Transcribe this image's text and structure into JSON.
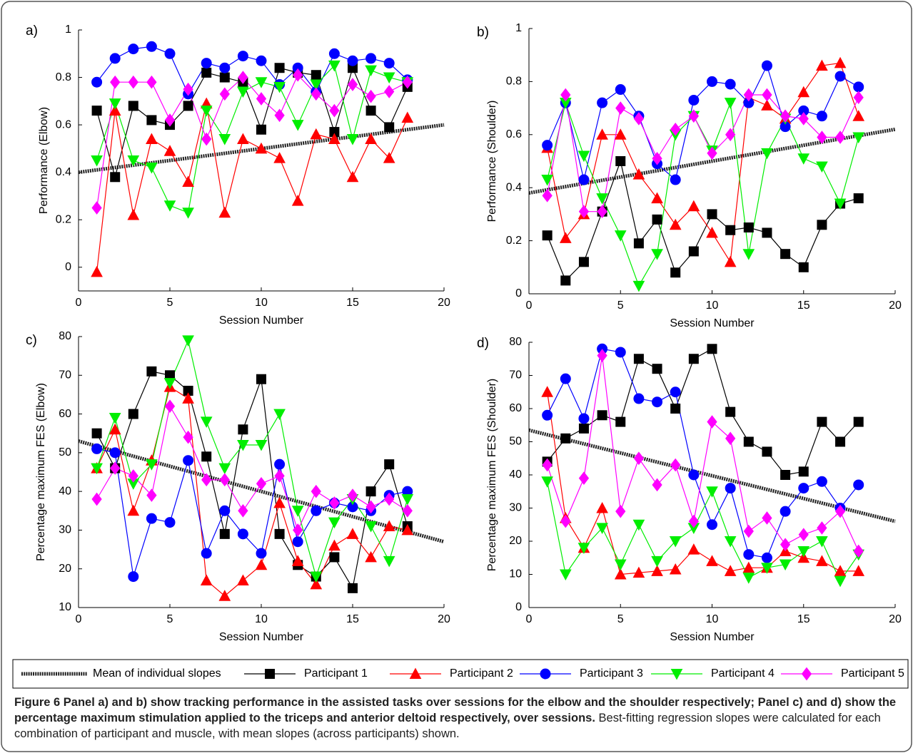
{
  "chart_data": [
    {
      "type": "line",
      "label": "a)",
      "ylabel": "Performance (Elbow)",
      "xlabel": "Session Number",
      "xlim": [
        0,
        20
      ],
      "ylim": [
        -0.1,
        1
      ],
      "xticks": [
        0,
        5,
        10,
        15,
        20
      ],
      "yticks": [
        0,
        0.2,
        0.4,
        0.6,
        0.8,
        1
      ],
      "x": [
        1,
        2,
        3,
        4,
        5,
        6,
        7,
        8,
        9,
        10,
        11,
        12,
        13,
        14,
        15,
        16,
        17,
        18
      ],
      "series": [
        {
          "values": [
            0.66,
            0.38,
            0.68,
            0.62,
            0.6,
            0.68,
            0.82,
            0.8,
            0.78,
            0.58,
            0.84,
            0.82,
            0.81,
            0.57,
            0.84,
            0.66,
            0.59,
            0.76
          ]
        },
        {
          "values": [
            -0.02,
            0.66,
            0.22,
            0.54,
            0.49,
            0.36,
            0.69,
            0.23,
            0.54,
            0.5,
            0.46,
            0.28,
            0.56,
            0.54,
            0.38,
            0.54,
            0.46,
            0.63
          ]
        },
        {
          "values": [
            0.78,
            0.88,
            0.92,
            0.93,
            0.9,
            0.73,
            0.86,
            0.84,
            0.89,
            0.87,
            0.77,
            0.84,
            0.74,
            0.9,
            0.87,
            0.88,
            0.86,
            0.79
          ]
        },
        {
          "values": [
            0.45,
            0.69,
            0.45,
            0.42,
            0.26,
            0.23,
            0.66,
            0.54,
            0.74,
            0.78,
            0.76,
            0.6,
            0.77,
            0.85,
            0.54,
            0.83,
            0.8,
            0.78
          ]
        },
        {
          "values": [
            0.25,
            0.78,
            0.78,
            0.78,
            0.62,
            0.75,
            0.54,
            0.73,
            0.8,
            0.71,
            0.64,
            0.81,
            0.73,
            0.66,
            0.77,
            0.72,
            0.74,
            0.78
          ]
        }
      ],
      "trend": {
        "x": [
          0,
          20
        ],
        "values": [
          0.4,
          0.6
        ]
      }
    },
    {
      "type": "line",
      "label": "b)",
      "ylabel": "Performance (Shoulder)",
      "xlabel": "Session Number",
      "xlim": [
        0,
        20
      ],
      "ylim": [
        0,
        1
      ],
      "xticks": [
        0,
        5,
        10,
        15,
        20
      ],
      "yticks": [
        0,
        0.2,
        0.4,
        0.6,
        0.8,
        1
      ],
      "x": [
        1,
        2,
        3,
        4,
        5,
        6,
        7,
        8,
        9,
        10,
        11,
        12,
        13,
        14,
        15,
        16,
        17,
        18
      ],
      "series": [
        {
          "values": [
            0.22,
            0.05,
            0.12,
            0.31,
            0.5,
            0.19,
            0.28,
            0.08,
            0.16,
            0.3,
            0.24,
            0.25,
            0.23,
            0.15,
            0.1,
            0.26,
            0.34,
            0.36
          ]
        },
        {
          "values": [
            0.55,
            0.21,
            0.3,
            0.6,
            0.6,
            0.45,
            0.36,
            0.26,
            0.33,
            0.23,
            0.12,
            0.74,
            0.71,
            0.66,
            0.76,
            0.86,
            0.87,
            0.67
          ]
        },
        {
          "values": [
            0.56,
            0.72,
            0.43,
            0.72,
            0.77,
            0.67,
            0.49,
            0.43,
            0.73,
            0.8,
            0.79,
            0.72,
            0.86,
            0.63,
            0.69,
            0.67,
            0.82,
            0.78
          ]
        },
        {
          "values": [
            0.43,
            0.72,
            0.52,
            0.36,
            0.22,
            0.03,
            0.15,
            0.6,
            0.67,
            0.54,
            0.72,
            0.15,
            0.53,
            0.66,
            0.51,
            0.48,
            0.34,
            0.59
          ]
        },
        {
          "values": [
            0.37,
            0.75,
            0.31,
            0.31,
            0.7,
            0.66,
            0.51,
            0.62,
            0.67,
            0.53,
            0.6,
            0.75,
            0.75,
            0.67,
            0.66,
            0.59,
            0.59,
            0.74
          ]
        }
      ],
      "trend": {
        "x": [
          0,
          20
        ],
        "values": [
          0.38,
          0.62
        ]
      }
    },
    {
      "type": "line",
      "label": "c)",
      "ylabel": "Percentage maximum FES (Elbow)",
      "xlabel": "Session Number",
      "xlim": [
        0,
        20
      ],
      "ylim": [
        10,
        80
      ],
      "xticks": [
        0,
        5,
        10,
        15,
        20
      ],
      "yticks": [
        10,
        20,
        30,
        40,
        50,
        60,
        70,
        80
      ],
      "x": [
        1,
        2,
        3,
        4,
        5,
        6,
        7,
        8,
        9,
        10,
        11,
        12,
        13,
        14,
        15,
        16,
        17,
        18
      ],
      "series": [
        {
          "values": [
            55,
            46,
            60,
            71,
            70,
            66,
            49,
            29,
            56,
            69,
            29,
            21,
            18,
            23,
            15,
            40,
            47,
            31
          ]
        },
        {
          "values": [
            46,
            56,
            35,
            48,
            67,
            64,
            17,
            13,
            17,
            21,
            37,
            22,
            16,
            26,
            29,
            23,
            31,
            30
          ]
        },
        {
          "values": [
            51,
            50,
            18,
            33,
            32,
            48,
            24,
            35,
            29,
            24,
            47,
            27,
            35,
            37,
            36,
            35,
            39,
            40
          ]
        },
        {
          "values": [
            46,
            59,
            42,
            47,
            68,
            79,
            58,
            46,
            52,
            52,
            60,
            35,
            18,
            32,
            38,
            31,
            22,
            38
          ]
        },
        {
          "values": [
            38,
            46,
            44,
            39,
            62,
            54,
            43,
            43,
            35,
            42,
            44,
            30,
            40,
            37,
            39,
            36,
            38,
            35
          ]
        }
      ],
      "trend": {
        "x": [
          0,
          20
        ],
        "values": [
          53,
          27
        ]
      }
    },
    {
      "type": "line",
      "label": "d)",
      "ylabel": "Percentage maximum FES (Shoulder)",
      "xlabel": "Session Number",
      "xlim": [
        0,
        20
      ],
      "ylim": [
        0,
        80
      ],
      "xticks": [
        0,
        5,
        10,
        15,
        20
      ],
      "yticks": [
        0,
        10,
        20,
        30,
        40,
        50,
        60,
        70,
        80
      ],
      "x": [
        1,
        2,
        3,
        4,
        5,
        6,
        7,
        8,
        9,
        10,
        11,
        12,
        13,
        14,
        15,
        16,
        17,
        18
      ],
      "series": [
        {
          "values": [
            44,
            51,
            54,
            58,
            56,
            75,
            72,
            60,
            75,
            78,
            59,
            50,
            47,
            40,
            41,
            56,
            50,
            56
          ]
        },
        {
          "values": [
            65,
            27,
            18,
            30,
            10,
            10.5,
            11,
            11.5,
            17.5,
            14,
            11,
            12,
            12,
            17,
            15,
            14,
            11,
            11
          ]
        },
        {
          "values": [
            58,
            69,
            57,
            78,
            77,
            63,
            62,
            65,
            40,
            25,
            36,
            16,
            15,
            29,
            36,
            38,
            30,
            37
          ]
        },
        {
          "values": [
            38,
            10,
            18,
            24,
            13,
            25,
            14,
            20,
            24,
            35,
            20,
            9,
            12,
            13,
            17,
            20,
            8,
            16
          ]
        },
        {
          "values": [
            43,
            26,
            39,
            76,
            29,
            45,
            37,
            43,
            26,
            56,
            51,
            23,
            27,
            19,
            22,
            24,
            29,
            17
          ]
        }
      ],
      "trend": {
        "x": [
          0,
          20
        ],
        "values": [
          53.5,
          26
        ]
      }
    }
  ],
  "legend": {
    "trend": {
      "name": "Mean of individual slopes",
      "color": "#222222"
    },
    "series": [
      {
        "name": "Participant 1",
        "color": "#000000",
        "marker": "square"
      },
      {
        "name": "Participant 2",
        "color": "#ff0000",
        "marker": "triangle-up"
      },
      {
        "name": "Participant 3",
        "color": "#0000ff",
        "marker": "circle"
      },
      {
        "name": "Participant 4",
        "color": "#00ee00",
        "marker": "triangle-down"
      },
      {
        "name": "Participant 5",
        "color": "#ff00ff",
        "marker": "diamond"
      }
    ]
  },
  "caption": {
    "bold": "Figure 6 Panel a) and b) show tracking performance in the assisted tasks over sessions for the elbow and the shoulder respectively; Panel c) and d) show the percentage maximum stimulation applied to the triceps and anterior deltoid respectively, over sessions.",
    "text": "Best-fitting regression slopes were calculated for each combination of participant and muscle, with mean slopes (across participants) shown."
  }
}
